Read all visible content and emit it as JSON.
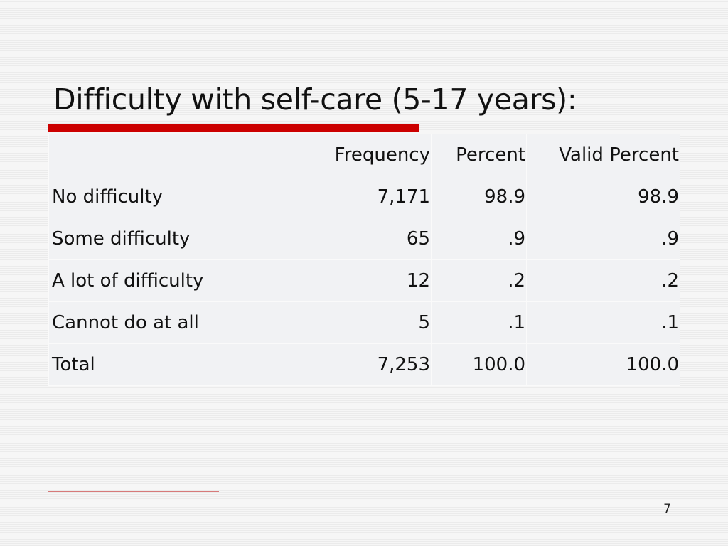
{
  "slide": {
    "title": "Difficulty with self-care (5-17 years):",
    "page_number": "7",
    "accent_color": "#cc0000"
  },
  "table": {
    "headers": {
      "label": "",
      "frequency": "Frequency",
      "percent": "Percent",
      "valid_percent": "Valid Percent"
    },
    "rows": [
      {
        "label": "No difficulty",
        "frequency": "7,171",
        "percent": "98.9",
        "valid_percent": "98.9"
      },
      {
        "label": "Some difficulty",
        "frequency": "65",
        "percent": ".9",
        "valid_percent": ".9"
      },
      {
        "label": "A lot of difficulty",
        "frequency": "12",
        "percent": ".2",
        "valid_percent": ".2"
      },
      {
        "label": "Cannot do at all",
        "frequency": "5",
        "percent": ".1",
        "valid_percent": ".1"
      },
      {
        "label": "Total",
        "frequency": "7,253",
        "percent": "100.0",
        "valid_percent": "100.0"
      }
    ]
  }
}
